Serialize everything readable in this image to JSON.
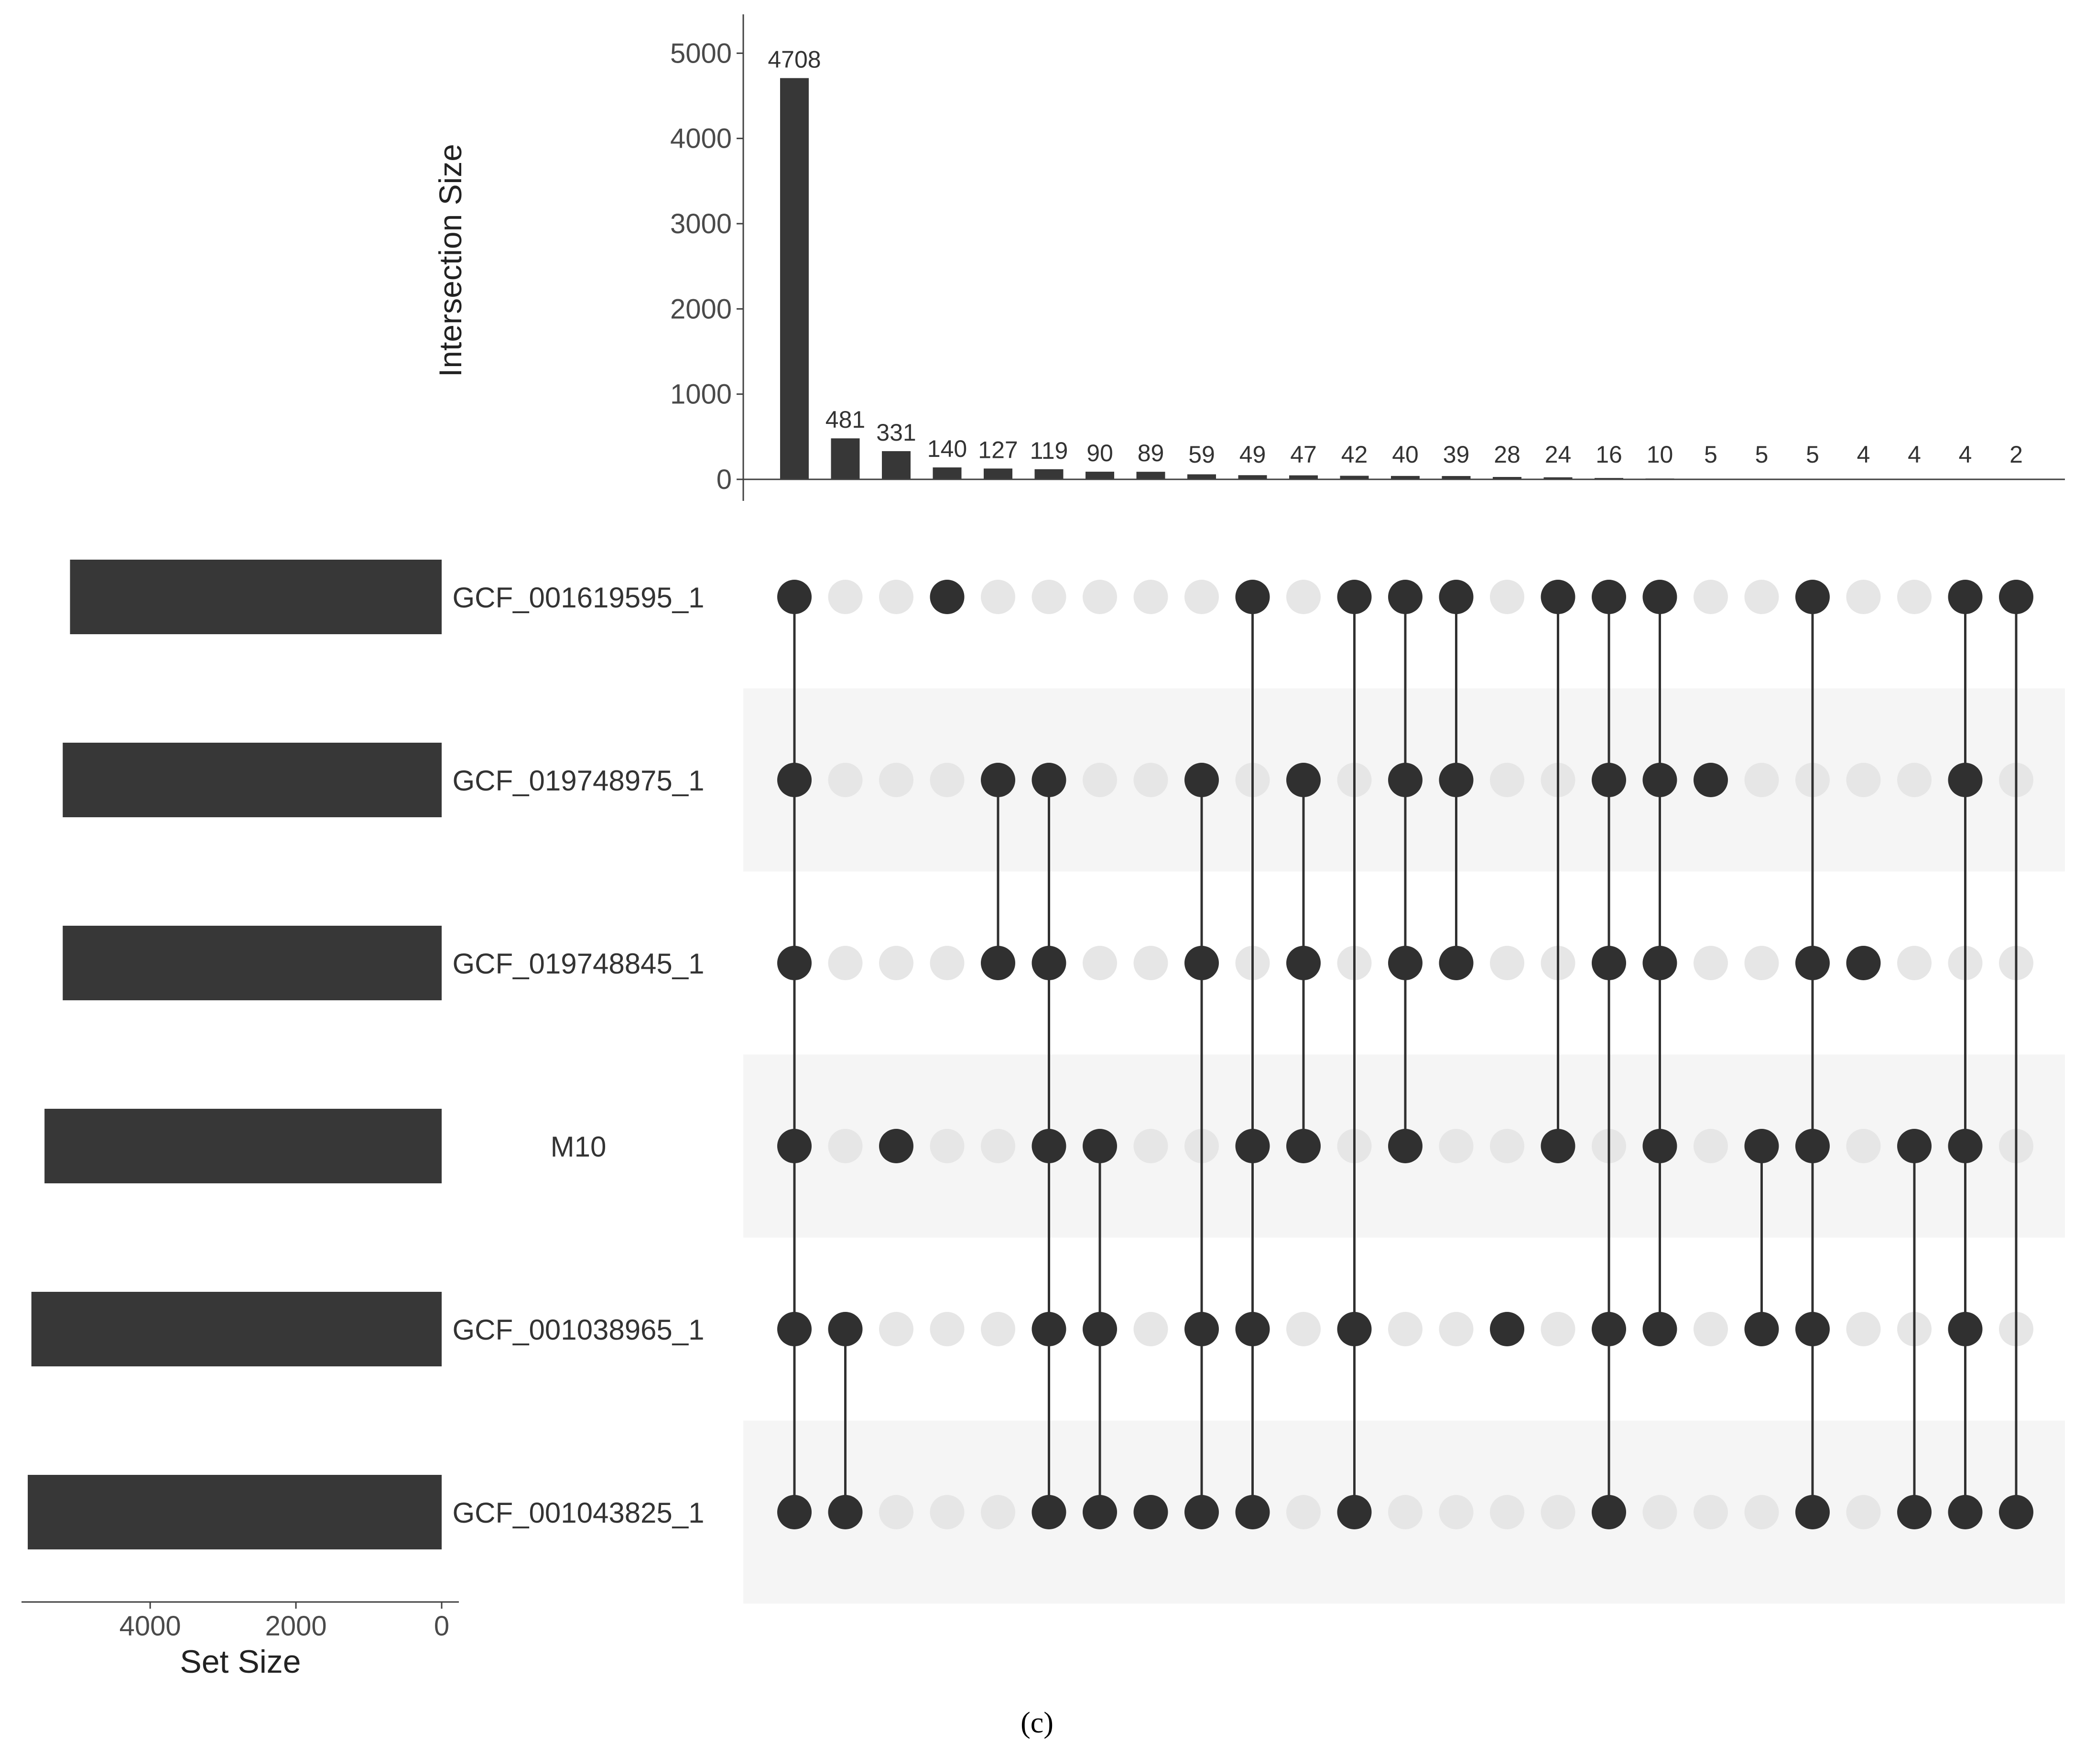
{
  "panel_label": "(c)",
  "colors": {
    "bar": "#373737",
    "dot_on": "#303030",
    "dot_off": "#e6e6e6",
    "stripe": "#f5f5f5",
    "axis": "#404040",
    "text": "#4a4a4a"
  },
  "chart_data": {
    "type": "upset",
    "intersection_axis": {
      "label": "Intersection Size",
      "ylim": [
        0,
        5400
      ],
      "ticks": [
        "0",
        "1000",
        "2000",
        "3000",
        "4000",
        "5000"
      ]
    },
    "set_axis": {
      "label": "Set Size",
      "xlim": [
        0,
        5700
      ],
      "ticks": [
        "4000",
        "2000",
        "0"
      ]
    },
    "sets": [
      "GCF_001619595_1",
      "GCF_019748975_1",
      "GCF_019748845_1",
      "M10",
      "GCF_001038965_1",
      "GCF_001043825_1"
    ],
    "set_sizes": [
      5100,
      5200,
      5200,
      5450,
      5630,
      5680
    ],
    "intersections": [
      {
        "size": 4708,
        "label": "4708",
        "members": [
          0,
          1,
          2,
          3,
          4,
          5
        ]
      },
      {
        "size": 481,
        "label": "481",
        "members": [
          4,
          5
        ]
      },
      {
        "size": 331,
        "label": "331",
        "members": [
          3
        ]
      },
      {
        "size": 140,
        "label": "140",
        "members": [
          0
        ]
      },
      {
        "size": 127,
        "label": "127",
        "members": [
          1,
          2
        ]
      },
      {
        "size": 119,
        "label": "119",
        "members": [
          1,
          2,
          3,
          4,
          5
        ]
      },
      {
        "size": 90,
        "label": "90",
        "members": [
          3,
          4,
          5
        ]
      },
      {
        "size": 89,
        "label": "89",
        "members": [
          5
        ]
      },
      {
        "size": 59,
        "label": "59",
        "members": [
          1,
          2,
          4,
          5
        ]
      },
      {
        "size": 49,
        "label": "49",
        "members": [
          0,
          3,
          4,
          5
        ]
      },
      {
        "size": 47,
        "label": "47",
        "members": [
          1,
          2,
          3
        ]
      },
      {
        "size": 42,
        "label": "42",
        "members": [
          0,
          4,
          5
        ]
      },
      {
        "size": 40,
        "label": "40",
        "members": [
          0,
          1,
          2,
          3
        ]
      },
      {
        "size": 39,
        "label": "39",
        "members": [
          0,
          1,
          2
        ]
      },
      {
        "size": 28,
        "label": "28",
        "members": [
          4
        ]
      },
      {
        "size": 24,
        "label": "24",
        "members": [
          0,
          3
        ]
      },
      {
        "size": 16,
        "label": "16",
        "members": [
          0,
          1,
          2,
          4,
          5
        ]
      },
      {
        "size": 10,
        "label": "10",
        "members": [
          0,
          1,
          2,
          3,
          4
        ]
      },
      {
        "size": 5,
        "label": "5",
        "members": [
          1
        ]
      },
      {
        "size": 5,
        "label": "5",
        "members": [
          3,
          4
        ]
      },
      {
        "size": 5,
        "label": "5",
        "members": [
          0,
          2,
          3,
          4,
          5
        ]
      },
      {
        "size": 4,
        "label": "4",
        "members": [
          2
        ]
      },
      {
        "size": 4,
        "label": "4",
        "members": [
          3,
          5
        ]
      },
      {
        "size": 4,
        "label": "4",
        "members": [
          0,
          1,
          3,
          4,
          5
        ]
      },
      {
        "size": 2,
        "label": "2",
        "members": [
          0,
          5
        ]
      }
    ]
  }
}
